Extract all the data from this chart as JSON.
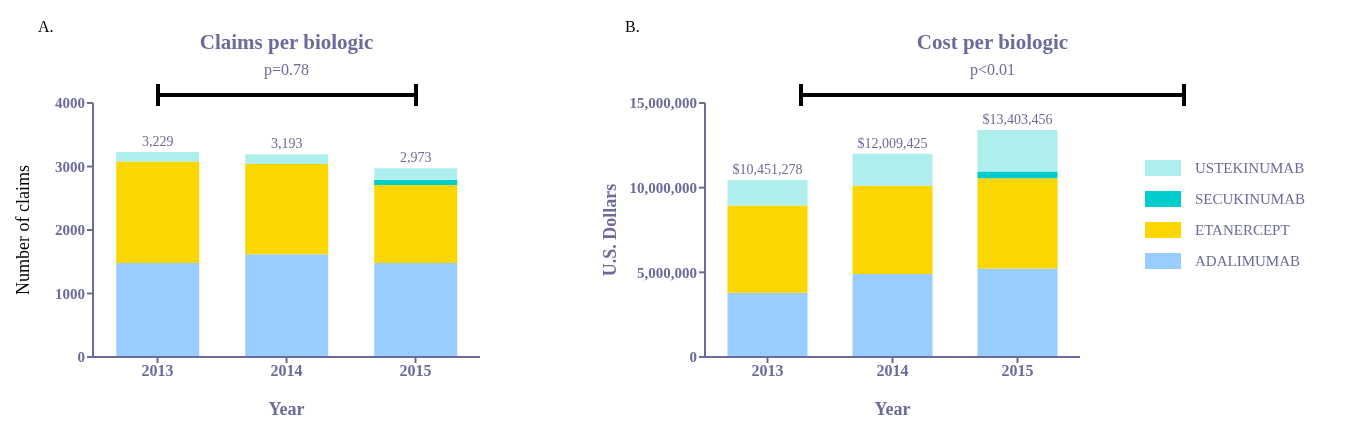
{
  "chart_data": [
    {
      "type": "bar",
      "title": "Claims per biologic",
      "xlabel": "Year",
      "ylabel": "Number of claims",
      "annotations": [
        "A.",
        "p=0.78"
      ],
      "categories": [
        "2013",
        "2014",
        "2015"
      ],
      "stacked": true,
      "ylim": [
        0,
        4000
      ],
      "yticks": [
        0,
        1000,
        2000,
        3000,
        4000
      ],
      "grid": false,
      "legend": false,
      "totals": [
        "3,229",
        "3,193",
        "2,973"
      ],
      "series": [
        {
          "color": "#99ccff",
          "values": [
            1480,
            1620,
            1480
          ]
        },
        {
          "color": "#fcd600",
          "values": [
            1600,
            1420,
            1230
          ]
        },
        {
          "color": "#00cccc",
          "values": [
            0,
            0,
            80
          ]
        },
        {
          "color": "#aeeeed",
          "values": [
            149,
            153,
            183
          ]
        }
      ]
    },
    {
      "type": "bar",
      "title": "Cost per biologic",
      "xlabel": "Year",
      "ylabel": "U.S. Dollars",
      "annotations": [
        "B.",
        "p<0.01"
      ],
      "categories": [
        "2013",
        "2014",
        "2015"
      ],
      "stacked": true,
      "ylim": [
        0,
        15000000
      ],
      "yticks": [
        {
          "value": 0,
          "label": "0"
        },
        {
          "value": 5000000,
          "label": "5,000,000"
        },
        {
          "value": 10000000,
          "label": "10,000,000"
        },
        {
          "value": 15000000,
          "label": "15,000,000"
        }
      ],
      "grid": false,
      "legend": "right",
      "totals": [
        "$10,451,278",
        "$12,009,425",
        "$13,403,456"
      ],
      "series": [
        {
          "name": "ADALIMUMAB",
          "color": "#99ccff",
          "values": [
            3800000,
            4900000,
            5230000
          ]
        },
        {
          "name": "ETANERCEPT",
          "color": "#fcd600",
          "values": [
            5140000,
            5220000,
            5330000
          ]
        },
        {
          "name": "SECUKINUMAB",
          "color": "#00cccc",
          "values": [
            0,
            0,
            400000
          ]
        },
        {
          "name": "USTEKINUMAB",
          "color": "#aeeeed",
          "values": [
            1511278,
            1889425,
            2443456
          ]
        }
      ]
    }
  ]
}
